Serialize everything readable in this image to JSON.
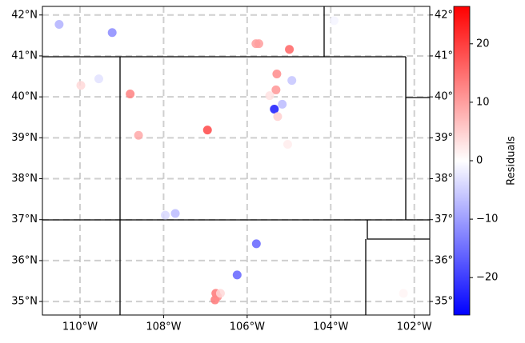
{
  "chart_data": {
    "type": "scatter",
    "x": [
      -110.5,
      -109.23,
      -105.79,
      -105.72,
      -104.99,
      -103.92,
      -109.98,
      -109.55,
      -108.8,
      -105.29,
      -104.93,
      -105.31,
      -105.46,
      -105.35,
      -105.16,
      -105.27,
      -105.03,
      -108.6,
      -106.95,
      -107.96,
      -107.72,
      -105.78,
      -106.24,
      -106.75,
      -106.77,
      -106.71,
      -106.64,
      -102.26
    ],
    "y": [
      41.77,
      41.57,
      41.3,
      41.3,
      41.16,
      41.86,
      40.28,
      40.44,
      40.07,
      40.56,
      40.4,
      40.17,
      40.03,
      39.7,
      39.82,
      39.52,
      38.84,
      39.06,
      39.19,
      37.11,
      37.15,
      36.41,
      35.65,
      35.2,
      35.04,
      35.12,
      35.2,
      35.2
    ],
    "values": [
      -8,
      -12,
      10,
      10,
      16,
      -1,
      4,
      -3,
      13,
      12,
      -6,
      11,
      3,
      -24,
      -7,
      5,
      2,
      9,
      19,
      -4,
      -7,
      -16,
      -16,
      14,
      14,
      12,
      4,
      1
    ],
    "colormap": "bwr",
    "xlim": [
      -110.9,
      -101.63
    ],
    "ylim": [
      34.67,
      42.21
    ],
    "xticks": [
      {
        "value": -110,
        "label": "110°W"
      },
      {
        "value": -108,
        "label": "108°W"
      },
      {
        "value": -106,
        "label": "106°W"
      },
      {
        "value": -104,
        "label": "104°W"
      },
      {
        "value": -102,
        "label": "102°W"
      }
    ],
    "yticks": [
      {
        "value": 35,
        "label": "35°N"
      },
      {
        "value": 36,
        "label": "36°N"
      },
      {
        "value": 37,
        "label": "37°N"
      },
      {
        "value": 38,
        "label": "38°N"
      },
      {
        "value": 39,
        "label": "39°N"
      },
      {
        "value": 40,
        "label": "40°N"
      },
      {
        "value": 41,
        "label": "41°N"
      },
      {
        "value": 42,
        "label": "42°N"
      }
    ],
    "grid": true,
    "colorbar": {
      "label": "Residuals",
      "lim": [
        -26.4,
        26.4
      ],
      "ticks": [
        {
          "value": -20,
          "label": "−20"
        },
        {
          "value": -10,
          "label": "−10"
        },
        0,
        10,
        20
      ]
    }
  }
}
